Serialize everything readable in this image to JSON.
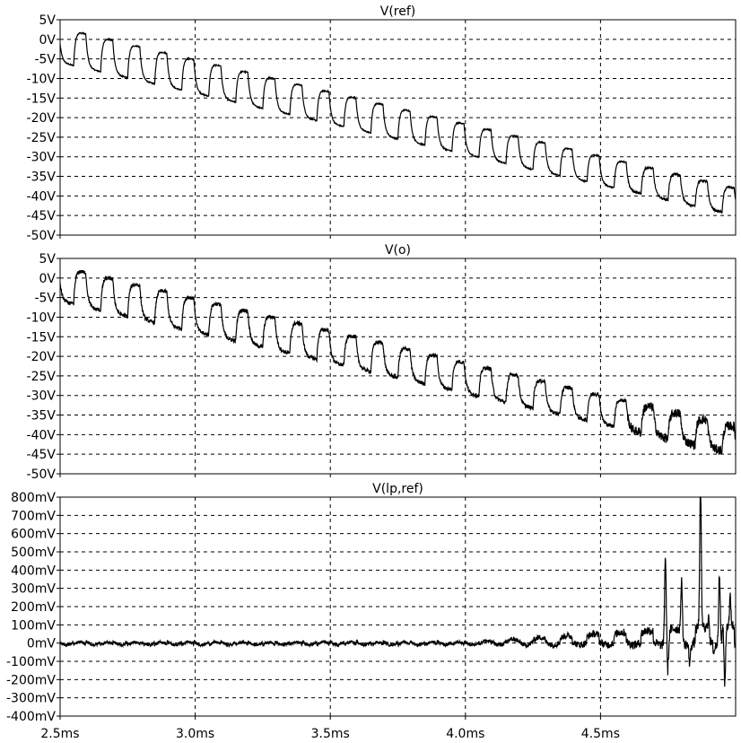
{
  "chart_data": [
    {
      "type": "line",
      "title": "V(ref)",
      "ylim": [
        -50,
        5
      ],
      "yticks": [
        5,
        0,
        -5,
        -10,
        -15,
        -20,
        -25,
        -30,
        -35,
        -40,
        -45,
        -50
      ],
      "ytick_labels": [
        "5V",
        "0V",
        "-5V",
        "-10V",
        "-15V",
        "-20V",
        "-25V",
        "-30V",
        "-35V",
        "-40V",
        "-45V",
        "-50V"
      ],
      "xlim": [
        2.5,
        5.0
      ],
      "grid": true,
      "series": [
        {
          "color": "#000000",
          "waveform": "square_steps",
          "period_ms": 0.1,
          "high_fraction": 0.45,
          "high_start_v": 3,
          "high_end_v": -38,
          "low_start_v": -6,
          "low_end_v": -45,
          "high_slope_v_per_ms": -0.8,
          "low_slope_v_per_ms": 3.0,
          "rise_tau_ms": 0.006,
          "fall_tau_ms": 0.008,
          "noise_v": 0.15,
          "late_noise_v": 0.3,
          "first_cycle_start_ms": 2.55
        }
      ]
    },
    {
      "type": "line",
      "title": "V(o)",
      "ylim": [
        -50,
        5
      ],
      "yticks": [
        5,
        0,
        -5,
        -10,
        -15,
        -20,
        -25,
        -30,
        -35,
        -40,
        -45,
        -50
      ],
      "ytick_labels": [
        "5V",
        "0V",
        "-5V",
        "-10V",
        "-15V",
        "-20V",
        "-25V",
        "-30V",
        "-35V",
        "-40V",
        "-45V",
        "-50V"
      ],
      "xlim": [
        2.5,
        5.0
      ],
      "grid": true,
      "series": [
        {
          "color": "#000000",
          "waveform": "square_steps",
          "period_ms": 0.1,
          "high_fraction": 0.45,
          "high_start_v": 3,
          "high_end_v": -38,
          "low_start_v": -6,
          "low_end_v": -45,
          "high_slope_v_per_ms": -0.8,
          "low_slope_v_per_ms": 3.0,
          "rise_tau_ms": 0.006,
          "fall_tau_ms": 0.008,
          "noise_v": 0.5,
          "late_noise_v": 1.2,
          "first_cycle_start_ms": 2.55
        }
      ]
    },
    {
      "type": "line",
      "title": "V(lp,ref)",
      "ylim": [
        -400,
        800
      ],
      "yticks": [
        800,
        700,
        600,
        500,
        400,
        300,
        200,
        100,
        0,
        -100,
        -200,
        -300,
        -400
      ],
      "ytick_labels": [
        "800mV",
        "700mV",
        "600mV",
        "500mV",
        "400mV",
        "300mV",
        "200mV",
        "100mV",
        "0mV",
        "-100mV",
        "-200mV",
        "-300mV",
        "-400mV"
      ],
      "xlim": [
        2.5,
        5.0
      ],
      "xticks": [
        2.5,
        3.0,
        3.5,
        4.0,
        4.5
      ],
      "xtick_labels": [
        "2.5ms",
        "3.0ms",
        "3.5ms",
        "4.0ms",
        "4.5ms"
      ],
      "grid": true,
      "series": [
        {
          "color": "#000000",
          "waveform": "error_signal",
          "period_ms": 0.1,
          "ripple_mv": 25,
          "noise_mv": 8,
          "growth_start_ms": 4.0,
          "late_step_mv": 80,
          "spikes": [
            {
              "x": 4.74,
              "y": 480
            },
            {
              "x": 4.75,
              "y": -170
            },
            {
              "x": 4.8,
              "y": 350
            },
            {
              "x": 4.83,
              "y": -100
            },
            {
              "x": 4.87,
              "y": 790
            },
            {
              "x": 4.9,
              "y": 160
            },
            {
              "x": 4.92,
              "y": -40
            },
            {
              "x": 4.94,
              "y": 400
            },
            {
              "x": 4.96,
              "y": -310
            },
            {
              "x": 4.98,
              "y": 150
            }
          ]
        }
      ]
    }
  ]
}
